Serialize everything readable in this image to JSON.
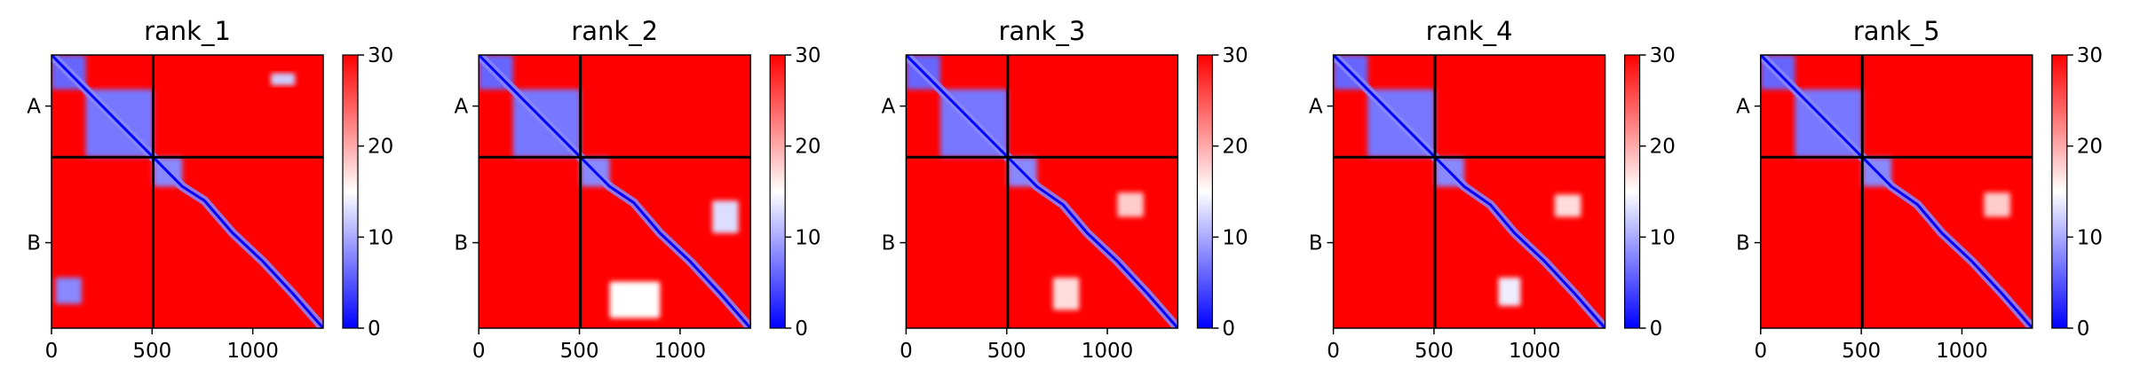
{
  "chart_data": [
    {
      "type": "heatmap",
      "title": "rank_1",
      "chains": [
        "A",
        "B"
      ],
      "chain_break": 505,
      "extent": [
        0,
        1350
      ],
      "x_ticks": [
        0,
        500,
        1000
      ],
      "x_tick_labels": [
        "0",
        "500",
        "1000"
      ],
      "colorbar": {
        "range": [
          0,
          30
        ],
        "ticks": [
          0,
          10,
          20,
          30
        ],
        "tick_labels": [
          "0",
          "10",
          "20",
          "30"
        ],
        "colormap": "bwr"
      },
      "low_error_blocks": [
        {
          "x": [
            0,
            170
          ],
          "y": [
            0,
            170
          ],
          "value": 6
        },
        {
          "x": [
            170,
            505
          ],
          "y": [
            170,
            505
          ],
          "value": 7
        },
        {
          "x": [
            505,
            650
          ],
          "y": [
            505,
            650
          ],
          "value": 8
        },
        {
          "x": [
            1090,
            1210
          ],
          "y": [
            90,
            150
          ],
          "value": 12
        },
        {
          "x": [
            20,
            150
          ],
          "y": [
            1100,
            1230
          ],
          "value": 8
        }
      ],
      "diagonal_path": [
        [
          0,
          0
        ],
        [
          170,
          170
        ],
        [
          505,
          505
        ],
        [
          650,
          650
        ],
        [
          760,
          720
        ],
        [
          900,
          880
        ],
        [
          1050,
          1020
        ],
        [
          1200,
          1180
        ],
        [
          1350,
          1350
        ]
      ]
    },
    {
      "type": "heatmap",
      "title": "rank_2",
      "chains": [
        "A",
        "B"
      ],
      "chain_break": 505,
      "extent": [
        0,
        1350
      ],
      "x_ticks": [
        0,
        500,
        1000
      ],
      "x_tick_labels": [
        "0",
        "500",
        "1000"
      ],
      "colorbar": {
        "range": [
          0,
          30
        ],
        "ticks": [
          0,
          10,
          20,
          30
        ],
        "tick_labels": [
          "0",
          "10",
          "20",
          "30"
        ],
        "colormap": "bwr"
      },
      "low_error_blocks": [
        {
          "x": [
            0,
            170
          ],
          "y": [
            0,
            170
          ],
          "value": 6
        },
        {
          "x": [
            170,
            505
          ],
          "y": [
            170,
            505
          ],
          "value": 7
        },
        {
          "x": [
            505,
            650
          ],
          "y": [
            505,
            650
          ],
          "value": 8
        },
        {
          "x": [
            1160,
            1290
          ],
          "y": [
            720,
            880
          ],
          "value": 13
        },
        {
          "x": [
            650,
            900
          ],
          "y": [
            1120,
            1300
          ],
          "value": 15
        }
      ],
      "diagonal_path": [
        [
          0,
          0
        ],
        [
          170,
          170
        ],
        [
          505,
          505
        ],
        [
          650,
          650
        ],
        [
          770,
          730
        ],
        [
          900,
          880
        ],
        [
          1050,
          1020
        ],
        [
          1200,
          1180
        ],
        [
          1350,
          1350
        ]
      ]
    },
    {
      "type": "heatmap",
      "title": "rank_3",
      "chains": [
        "A",
        "B"
      ],
      "chain_break": 505,
      "extent": [
        0,
        1350
      ],
      "x_ticks": [
        0,
        500,
        1000
      ],
      "x_tick_labels": [
        "0",
        "500",
        "1000"
      ],
      "colorbar": {
        "range": [
          0,
          30
        ],
        "ticks": [
          0,
          10,
          20,
          30
        ],
        "tick_labels": [
          "0",
          "10",
          "20",
          "30"
        ],
        "colormap": "bwr"
      },
      "low_error_blocks": [
        {
          "x": [
            0,
            170
          ],
          "y": [
            0,
            170
          ],
          "value": 6
        },
        {
          "x": [
            170,
            505
          ],
          "y": [
            170,
            505
          ],
          "value": 7
        },
        {
          "x": [
            505,
            650
          ],
          "y": [
            505,
            650
          ],
          "value": 8
        },
        {
          "x": [
            730,
            860
          ],
          "y": [
            1100,
            1260
          ],
          "value": 17
        },
        {
          "x": [
            1050,
            1180
          ],
          "y": [
            680,
            800
          ],
          "value": 18
        }
      ],
      "diagonal_path": [
        [
          0,
          0
        ],
        [
          170,
          170
        ],
        [
          505,
          505
        ],
        [
          650,
          650
        ],
        [
          780,
          740
        ],
        [
          900,
          880
        ],
        [
          1050,
          1020
        ],
        [
          1200,
          1180
        ],
        [
          1350,
          1350
        ]
      ]
    },
    {
      "type": "heatmap",
      "title": "rank_4",
      "chains": [
        "A",
        "B"
      ],
      "chain_break": 505,
      "extent": [
        0,
        1350
      ],
      "x_ticks": [
        0,
        500,
        1000
      ],
      "x_tick_labels": [
        "0",
        "500",
        "1000"
      ],
      "colorbar": {
        "range": [
          0,
          30
        ],
        "ticks": [
          0,
          10,
          20,
          30
        ],
        "tick_labels": [
          "0",
          "10",
          "20",
          "30"
        ],
        "colormap": "bwr"
      },
      "low_error_blocks": [
        {
          "x": [
            0,
            170
          ],
          "y": [
            0,
            170
          ],
          "value": 6
        },
        {
          "x": [
            170,
            505
          ],
          "y": [
            170,
            505
          ],
          "value": 7
        },
        {
          "x": [
            505,
            650
          ],
          "y": [
            505,
            650
          ],
          "value": 8
        },
        {
          "x": [
            820,
            930
          ],
          "y": [
            1100,
            1240
          ],
          "value": 14
        },
        {
          "x": [
            1100,
            1230
          ],
          "y": [
            690,
            800
          ],
          "value": 17
        }
      ],
      "diagonal_path": [
        [
          0,
          0
        ],
        [
          170,
          170
        ],
        [
          505,
          505
        ],
        [
          650,
          650
        ],
        [
          780,
          740
        ],
        [
          900,
          880
        ],
        [
          1050,
          1020
        ],
        [
          1200,
          1180
        ],
        [
          1350,
          1350
        ]
      ]
    },
    {
      "type": "heatmap",
      "title": "rank_5",
      "chains": [
        "A",
        "B"
      ],
      "chain_break": 505,
      "extent": [
        0,
        1350
      ],
      "x_ticks": [
        0,
        500,
        1000
      ],
      "x_tick_labels": [
        "0",
        "500",
        "1000"
      ],
      "colorbar": {
        "range": [
          0,
          30
        ],
        "ticks": [
          0,
          10,
          20,
          30
        ],
        "tick_labels": [
          "0",
          "10",
          "20",
          "30"
        ],
        "colormap": "bwr"
      },
      "low_error_blocks": [
        {
          "x": [
            0,
            170
          ],
          "y": [
            0,
            170
          ],
          "value": 6
        },
        {
          "x": [
            170,
            505
          ],
          "y": [
            170,
            505
          ],
          "value": 7
        },
        {
          "x": [
            505,
            650
          ],
          "y": [
            505,
            650
          ],
          "value": 8
        },
        {
          "x": [
            1110,
            1240
          ],
          "y": [
            680,
            800
          ],
          "value": 18
        }
      ],
      "diagonal_path": [
        [
          0,
          0
        ],
        [
          170,
          170
        ],
        [
          505,
          505
        ],
        [
          650,
          650
        ],
        [
          780,
          740
        ],
        [
          900,
          880
        ],
        [
          1050,
          1020
        ],
        [
          1200,
          1180
        ],
        [
          1350,
          1350
        ]
      ]
    }
  ]
}
